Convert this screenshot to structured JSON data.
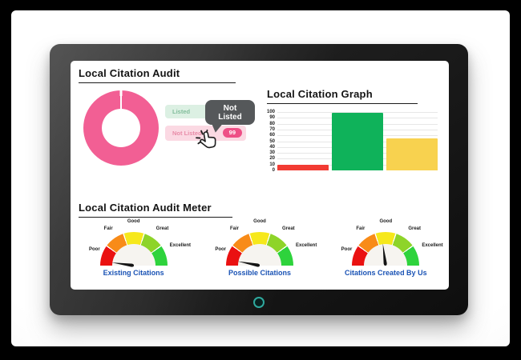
{
  "panels": {
    "audit": {
      "title": "Local Citation Audit",
      "legend": {
        "listed": "Listed",
        "not_listed": "Not Listed",
        "count": "99"
      },
      "tooltip": "Not Listed"
    },
    "graph": {
      "title": "Local Citation Graph"
    },
    "meter": {
      "title": "Local Citation Audit Meter",
      "scale_labels": [
        "Poor",
        "Fair",
        "Good",
        "Great",
        "Excellent"
      ],
      "gauges": [
        {
          "label": "Existing Citations",
          "needle_deg": -82,
          "reading": "Poor"
        },
        {
          "label": "Possible Citations",
          "needle_deg": -79,
          "reading": "Poor"
        },
        {
          "label": "Citations Created By Us",
          "needle_deg": -7,
          "reading": "Good"
        }
      ]
    }
  },
  "colors": {
    "donut_pink": "#f25f94",
    "badge_pink": "#ee4f86",
    "caption_blue": "#1a53b5",
    "tooltip_gray": "#55585a",
    "camera_teal": "#2fa99e"
  },
  "chart_data": [
    {
      "type": "pie",
      "title": "Local Citation Audit",
      "labels": [
        "Listed",
        "Not Listed"
      ],
      "values": [
        1,
        99
      ],
      "colors": [
        "#ffffff",
        "#f25f94"
      ],
      "donut": true,
      "legend_position": "right",
      "annotation": "Not Listed: 99"
    },
    {
      "type": "bar",
      "title": "Local Citation Graph",
      "bars": [
        {
          "value": 10,
          "color": "#f23b33"
        },
        {
          "value": 98,
          "color": "#0fb25a"
        },
        {
          "value": 55,
          "color": "#f8d24f"
        }
      ],
      "y_ticks": [
        0,
        10,
        20,
        30,
        40,
        50,
        60,
        70,
        80,
        90,
        100
      ],
      "ylim": [
        0,
        100
      ],
      "grid": true,
      "xlabel": "",
      "ylabel": ""
    },
    {
      "type": "gauge",
      "title": "Local Citation Audit Meter",
      "scale": [
        "Poor",
        "Fair",
        "Good",
        "Great",
        "Excellent"
      ],
      "segment_colors": [
        "#ea1111",
        "#f88b18",
        "#f6e81b",
        "#8ed429",
        "#2ed33c"
      ],
      "gauges": [
        {
          "label": "Existing Citations",
          "reading": "Poor"
        },
        {
          "label": "Possible Citations",
          "reading": "Poor"
        },
        {
          "label": "Citations Created By Us",
          "reading": "Good"
        }
      ]
    }
  ]
}
